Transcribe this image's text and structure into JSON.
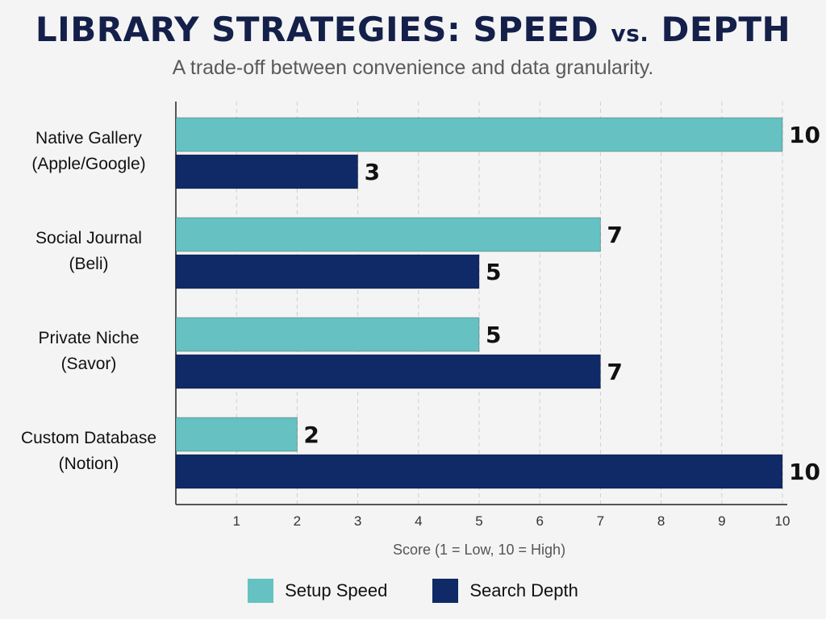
{
  "chart_data": {
    "type": "bar",
    "orientation": "horizontal",
    "title_main": "LIBRARY STRATEGIES: SPEED",
    "title_vs": "vs.",
    "title_end": "DEPTH",
    "subtitle": "A trade-off between convenience and data granularity.",
    "xlabel": "Score (1 = Low, 10 = High)",
    "xlim": [
      0,
      10
    ],
    "xticks": [
      1,
      2,
      3,
      4,
      5,
      6,
      7,
      8,
      9,
      10
    ],
    "grid": "vertical dashed",
    "legend_position": "bottom",
    "categories": [
      {
        "line1": "Native Gallery",
        "line2": "(Apple/Google)"
      },
      {
        "line1": "Social Journal",
        "line2": "(Beli)"
      },
      {
        "line1": "Private Niche",
        "line2": "(Savor)"
      },
      {
        "line1": "Custom Database",
        "line2": "(Notion)"
      }
    ],
    "series": [
      {
        "name": "Setup Speed",
        "color": "#66c2c2",
        "values": [
          10,
          7,
          5,
          2
        ]
      },
      {
        "name": "Search Depth",
        "color": "#0f2a66",
        "values": [
          3,
          5,
          7,
          10
        ]
      }
    ]
  }
}
